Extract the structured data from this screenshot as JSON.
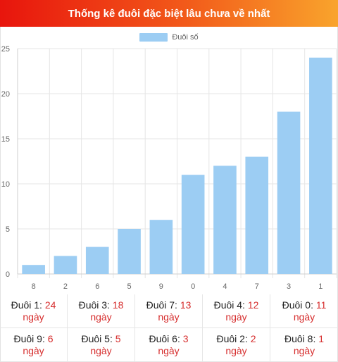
{
  "header": {
    "title": "Thống kê đuôi đặc biệt lâu chưa về nhất"
  },
  "colors": {
    "bar": "#9ccdf3",
    "grid": "#e5e5e5",
    "axis": "#cfcfcf",
    "tick": "#666666",
    "accent": "#d62d2d"
  },
  "chart_data": {
    "type": "bar",
    "categories": [
      "8",
      "2",
      "6",
      "5",
      "9",
      "0",
      "4",
      "7",
      "3",
      "1"
    ],
    "series": [
      {
        "name": "Đuôi số",
        "values": [
          1,
          2,
          3,
          5,
          6,
          11,
          12,
          13,
          18,
          24
        ]
      }
    ],
    "ylim": [
      0,
      25
    ],
    "yticks": [
      0,
      5,
      10,
      15,
      20,
      25
    ],
    "grid": true,
    "legend": "top-center"
  },
  "stats": {
    "unit": "ngày",
    "items": [
      {
        "label": "Đuôi 1:",
        "value": "24"
      },
      {
        "label": "Đuôi 3:",
        "value": "18"
      },
      {
        "label": "Đuôi 7:",
        "value": "13"
      },
      {
        "label": "Đuôi 4:",
        "value": "12"
      },
      {
        "label": "Đuôi 0:",
        "value": "11"
      },
      {
        "label": "Đuôi 9:",
        "value": "6"
      },
      {
        "label": "Đuôi 5:",
        "value": "5"
      },
      {
        "label": "Đuôi 6:",
        "value": "3"
      },
      {
        "label": "Đuôi 2:",
        "value": "2"
      },
      {
        "label": "Đuôi 8:",
        "value": "1"
      }
    ]
  }
}
